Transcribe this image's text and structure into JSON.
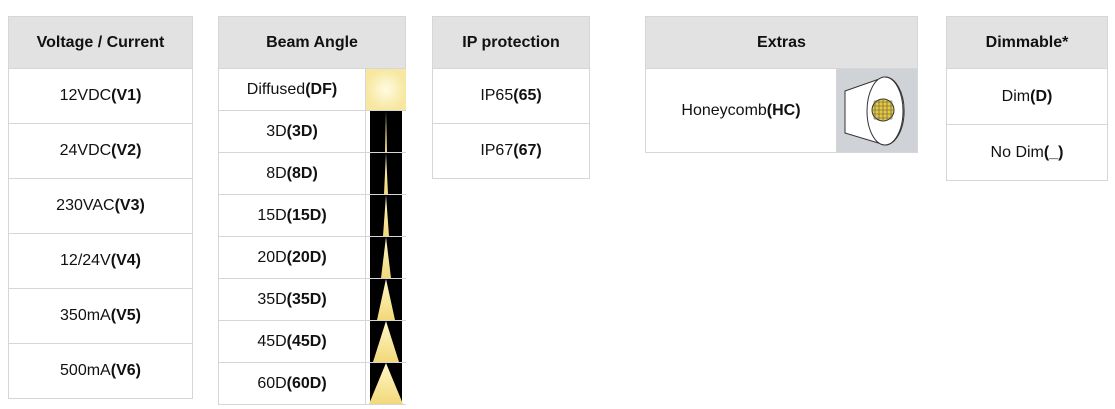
{
  "tables": [
    {
      "header": "Voltage / Current",
      "rows": [
        {
          "label": "12VDC",
          "code": "(V1)"
        },
        {
          "label": "24VDC",
          "code": "(V2)"
        },
        {
          "label": "230VAC",
          "code": "(V3)"
        },
        {
          "label": "12/24V",
          "code": "(V4)"
        },
        {
          "label": "350mA",
          "code": "(V5)"
        },
        {
          "label": "500mA",
          "code": "(V6)"
        }
      ]
    },
    {
      "header": "Beam Angle",
      "rows": [
        {
          "label": "Diffused",
          "code": "(DF)"
        },
        {
          "label": "3D",
          "code": "(3D)"
        },
        {
          "label": "8D",
          "code": "(8D)"
        },
        {
          "label": "15D",
          "code": "(15D)"
        },
        {
          "label": "20D",
          "code": "(20D)"
        },
        {
          "label": "35D",
          "code": "(35D)"
        },
        {
          "label": "45D",
          "code": "(45D)"
        },
        {
          "label": "60D",
          "code": "(60D)"
        }
      ]
    },
    {
      "header": "IP protection",
      "rows": [
        {
          "label": "IP65",
          "code": "(65)"
        },
        {
          "label": "IP67",
          "code": "(67)"
        }
      ]
    },
    {
      "header": "Extras",
      "rows": [
        {
          "label": "Honeycomb",
          "code": "(HC)"
        }
      ]
    },
    {
      "header": "Dimmable*",
      "rows": [
        {
          "label": "Dim",
          "code": "(D)"
        },
        {
          "label": "No Dim",
          "code": "(_)"
        }
      ]
    }
  ]
}
